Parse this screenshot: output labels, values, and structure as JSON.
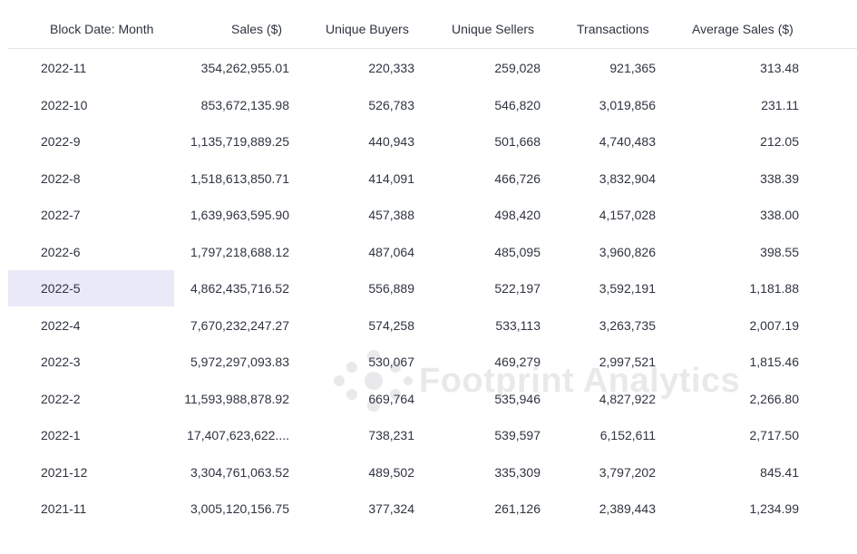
{
  "table": {
    "columns": [
      "Block Date: Month",
      "Sales ($)",
      "Unique Buyers",
      "Unique Sellers",
      "Transactions",
      "Average Sales ($)"
    ],
    "rows": [
      [
        "2022-11",
        "354,262,955.01",
        "220,333",
        "259,028",
        "921,365",
        "313.48"
      ],
      [
        "2022-10",
        "853,672,135.98",
        "526,783",
        "546,820",
        "3,019,856",
        "231.11"
      ],
      [
        "2022-9",
        "1,135,719,889.25",
        "440,943",
        "501,668",
        "4,740,483",
        "212.05"
      ],
      [
        "2022-8",
        "1,518,613,850.71",
        "414,091",
        "466,726",
        "3,832,904",
        "338.39"
      ],
      [
        "2022-7",
        "1,639,963,595.90",
        "457,388",
        "498,420",
        "4,157,028",
        "338.00"
      ],
      [
        "2022-6",
        "1,797,218,688.12",
        "487,064",
        "485,095",
        "3,960,826",
        "398.55"
      ],
      [
        "2022-5",
        "4,862,435,716.52",
        "556,889",
        "522,197",
        "3,592,191",
        "1,181.88"
      ],
      [
        "2022-4",
        "7,670,232,247.27",
        "574,258",
        "533,113",
        "3,263,735",
        "2,007.19"
      ],
      [
        "2022-3",
        "5,972,297,093.83",
        "530,067",
        "469,279",
        "2,997,521",
        "1,815.46"
      ],
      [
        "2022-2",
        "11,593,988,878.92",
        "669,764",
        "535,946",
        "4,827,922",
        "2,266.80"
      ],
      [
        "2022-1",
        "17,407,623,622....",
        "738,231",
        "539,597",
        "6,152,611",
        "2,717.50"
      ],
      [
        "2021-12",
        "3,304,761,063.52",
        "489,502",
        "335,309",
        "3,797,202",
        "845.41"
      ],
      [
        "2021-11",
        "3,005,120,156.75",
        "377,324",
        "261,126",
        "2,389,443",
        "1,234.99"
      ]
    ],
    "highlighted_row": "2022-5",
    "highlight_color": "#e9e9f7"
  },
  "watermark": {
    "text": "Footprint Analytics",
    "icon": "footprint-logo-icon"
  }
}
